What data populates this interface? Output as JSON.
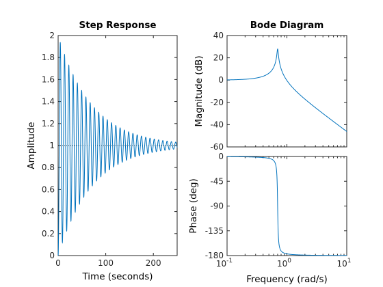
{
  "chart_data": [
    {
      "type": "line",
      "title": "Step Response",
      "xlabel": "Time (seconds)",
      "ylabel": "Amplitude",
      "xlim": [
        0,
        250
      ],
      "ylim": [
        0,
        2
      ],
      "xticks": [
        0,
        100,
        200
      ],
      "xtick_labels": [
        "0",
        "100",
        "200"
      ],
      "yticks": [
        0,
        0.2,
        0.4,
        0.6,
        0.8,
        1,
        1.2,
        1.4,
        1.6,
        1.8,
        2
      ],
      "ytick_labels": [
        "0",
        "0.2",
        "0.4",
        "0.6",
        "0.8",
        "1",
        "1.2",
        "1.4",
        "1.6",
        "1.8",
        "2"
      ],
      "reference_line": {
        "y": 1,
        "style": "dotted"
      },
      "series": [
        {
          "color": "#0072BD",
          "model": {
            "zeta": 0.02,
            "wn_rad_per_s": 0.7,
            "final_value": 1
          },
          "peak_overshoot": {
            "x": 4.5,
            "y": 1.89
          },
          "first_undershoot": {
            "x": 9,
            "y": 0.17
          }
        }
      ],
      "grid": false
    },
    {
      "type": "line",
      "title": "Bode Diagram",
      "xlabel": "",
      "ylabel": "Magnitude (dB)",
      "xscale": "log",
      "xlim": [
        0.1,
        10
      ],
      "ylim": [
        -60,
        40
      ],
      "yticks": [
        -60,
        -40,
        -20,
        0,
        20,
        40
      ],
      "ytick_labels": [
        "-60",
        "-40",
        "-20",
        "0",
        "20",
        "40"
      ],
      "series": [
        {
          "color": "#0072BD",
          "model": {
            "zeta": 0.02,
            "wn_rad_per_s": 0.7
          },
          "peak": {
            "x": 0.7,
            "y": 22
          }
        }
      ],
      "grid": false
    },
    {
      "type": "line",
      "title": "",
      "xlabel": "Frequency  (rad/s)",
      "ylabel": "Phase (deg)",
      "xscale": "log",
      "xlim": [
        0.1,
        10
      ],
      "ylim": [
        -180,
        0
      ],
      "xticks": [
        0.1,
        1,
        10
      ],
      "xtick_labels": [
        {
          "base": "10",
          "exp": "-1"
        },
        {
          "base": "10",
          "exp": "0"
        },
        {
          "base": "10",
          "exp": "1"
        }
      ],
      "yticks": [
        -180,
        -135,
        -90,
        -45,
        0
      ],
      "ytick_labels": [
        "-180",
        "-135",
        "-90",
        "-45",
        "0"
      ],
      "series": [
        {
          "color": "#0072BD",
          "model": {
            "zeta": 0.02,
            "wn_rad_per_s": 0.7
          }
        }
      ],
      "grid": false
    }
  ]
}
